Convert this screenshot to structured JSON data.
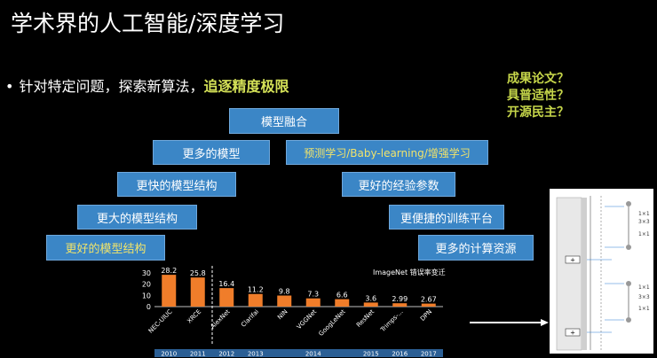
{
  "slide": {
    "title": "学术界的人工智能/深度学习",
    "bullet": {
      "dot": "•",
      "text": "针对特定问题，探索新算法，",
      "highlight": "追逐精度极限"
    },
    "questions": [
      "成果论文？",
      "具普适性？",
      "开源民主？"
    ],
    "boxes": [
      {
        "label": "模型融合",
        "color": "white"
      },
      {
        "label": "更多的模型",
        "color": "white"
      },
      {
        "label": "预测学习/Baby-learning/增强学习",
        "color": "yellow"
      },
      {
        "label": "更快的模型结构",
        "color": "white"
      },
      {
        "label": "更好的经验参数",
        "color": "white"
      },
      {
        "label": "更大的模型结构",
        "color": "white"
      },
      {
        "label": "更便捷的训练平台",
        "color": "white"
      },
      {
        "label": "更好的模型结构",
        "color": "yellow"
      },
      {
        "label": "更多的计算资源",
        "color": "white"
      }
    ],
    "colors": {
      "box_fill": "#3b86c6",
      "bar": "#f07d2a",
      "highlight": "#d4e157"
    }
  },
  "chart_data": {
    "type": "bar",
    "title": "ImageNet 错误率变迁",
    "categories": [
      "NEC-UIUC",
      "XRCE",
      "AlexNet",
      "Clarifai",
      "NIN",
      "VGGNet",
      "GoogLeNet",
      "ResNet",
      "Trimps-...",
      "DPN"
    ],
    "values": [
      28.2,
      25.8,
      16.4,
      11.2,
      9.8,
      7.3,
      6.6,
      3.6,
      2.99,
      2.67
    ],
    "value_labels": [
      "28.2",
      "25.8",
      "16.4",
      "11.2",
      "9.8",
      "7.3",
      "6.6",
      "3.6",
      "2.99",
      "2.67"
    ],
    "years": [
      "2010",
      "2011",
      "2012",
      "2013",
      "2014",
      "2015",
      "2016",
      "2017"
    ],
    "year_spans": [
      [
        0,
        0
      ],
      [
        1,
        1
      ],
      [
        2,
        2
      ],
      [
        3,
        3
      ],
      [
        4,
        6
      ],
      [
        7,
        7
      ],
      [
        8,
        8
      ],
      [
        9,
        9
      ]
    ],
    "yticks": [
      "0",
      "10",
      "20",
      "30"
    ],
    "ylim": [
      0,
      33
    ],
    "divider_after_index": 1
  },
  "figure": {
    "labels": [
      "1×1",
      "3×3",
      "1×1",
      "1×1",
      "3×3",
      "1×1"
    ],
    "plus": "+"
  }
}
